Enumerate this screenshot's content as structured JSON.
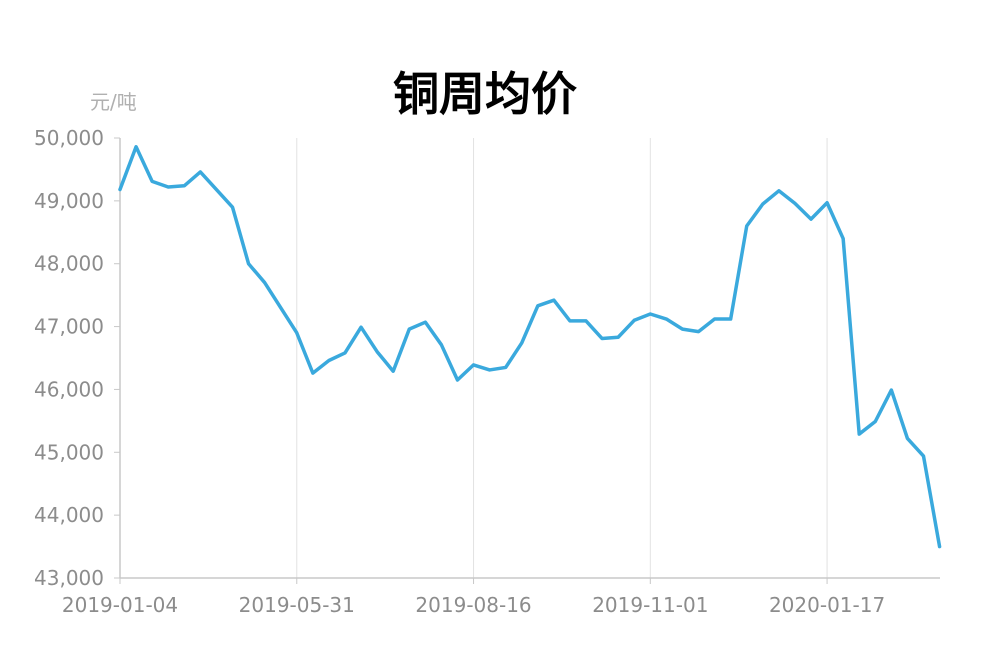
{
  "chart_data": {
    "type": "line",
    "title": "铜周均价",
    "unit_label": "元/吨",
    "ylabel": "元/吨",
    "xlabel": "",
    "ylim": [
      43000,
      50000
    ],
    "y_ticks": [
      "50,000",
      "49,000",
      "48,000",
      "47,000",
      "46,000",
      "45,000",
      "44,000",
      "43,000"
    ],
    "y_tick_values": [
      50000,
      49000,
      48000,
      47000,
      46000,
      45000,
      44000,
      43000
    ],
    "x_ticks": [
      "2019-01-04",
      "2019-05-31",
      "2019-08-16",
      "2019-11-01",
      "2020-01-17"
    ],
    "x_tick_index": [
      0,
      11,
      22,
      33,
      44
    ],
    "grid": "vertical",
    "line_color": "#3aa9dd",
    "series": [
      {
        "values": [
          49180,
          49860,
          49310,
          49220,
          49240,
          49460,
          49180,
          48900,
          48000,
          47700,
          47300,
          46900,
          46260,
          46460,
          46580,
          46990,
          46600,
          46290,
          46960,
          47070,
          46710,
          46150,
          46390,
          46310,
          46350,
          46740,
          47330,
          47420,
          47090,
          47090,
          46810,
          46830,
          47100,
          47200,
          47120,
          46960,
          46920,
          47120,
          47120,
          48600,
          48950,
          49160,
          48960,
          48710,
          48970,
          48400,
          45290,
          45490,
          45990,
          45220,
          44940,
          43500
        ]
      }
    ]
  }
}
